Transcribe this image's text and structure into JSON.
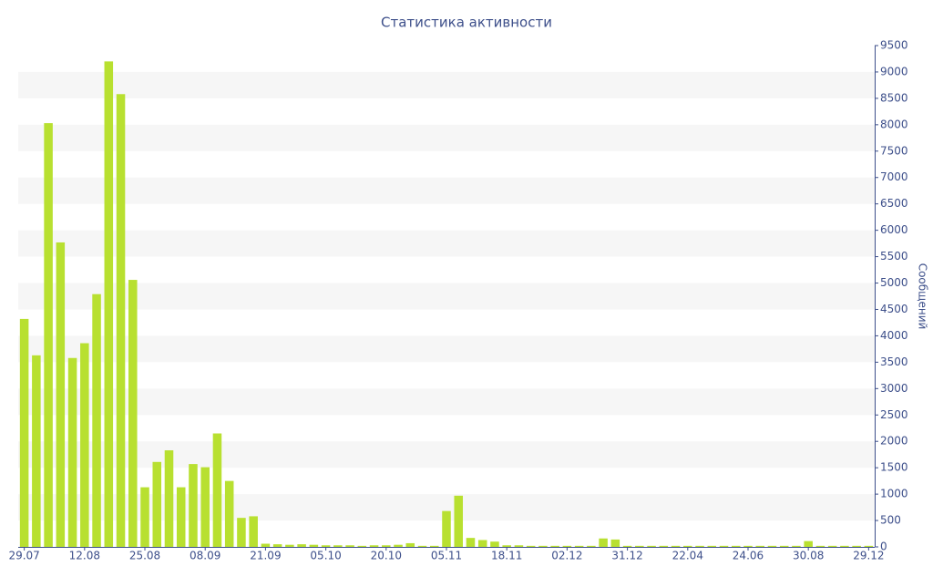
{
  "chart_data": {
    "type": "bar",
    "title": "Статистика активности",
    "y_label": "Сообщений",
    "categories": [
      "29.07",
      null,
      null,
      null,
      null,
      "12.08",
      null,
      null,
      null,
      null,
      "25.08",
      null,
      null,
      null,
      null,
      "08.09",
      null,
      null,
      null,
      null,
      "21.09",
      null,
      null,
      null,
      null,
      "05.10",
      null,
      null,
      null,
      null,
      "20.10",
      null,
      null,
      null,
      null,
      "05.11",
      null,
      null,
      null,
      null,
      "18.11",
      null,
      null,
      null,
      null,
      "02.12",
      null,
      null,
      null,
      null,
      "31.12",
      null,
      null,
      null,
      null,
      "22.04",
      null,
      null,
      null,
      null,
      "24.06",
      null,
      null,
      null,
      null,
      "30.08",
      null,
      null,
      null,
      null,
      "29.12"
    ],
    "values": [
      4320,
      3630,
      8030,
      5770,
      3580,
      3860,
      4790,
      9200,
      8580,
      5060,
      1130,
      1610,
      1830,
      1130,
      1570,
      1510,
      2150,
      1250,
      550,
      580,
      60,
      50,
      40,
      50,
      40,
      30,
      30,
      30,
      20,
      30,
      30,
      40,
      70,
      20,
      20,
      680,
      970,
      170,
      130,
      100,
      30,
      30,
      20,
      20,
      20,
      20,
      20,
      20,
      160,
      140,
      20,
      20,
      20,
      20,
      20,
      20,
      20,
      20,
      20,
      20,
      20,
      20,
      20,
      20,
      20,
      110,
      20,
      20,
      20,
      20,
      20
    ],
    "color": "#b8e030",
    "ylim": [
      0,
      9500
    ],
    "yticks": [
      0,
      500,
      1000,
      1500,
      2000,
      2500,
      3000,
      3500,
      4000,
      4500,
      5000,
      5500,
      6000,
      6500,
      7000,
      7500,
      8000,
      8500,
      9000,
      9500
    ],
    "grid": "banded",
    "y_axis_side": "right"
  }
}
